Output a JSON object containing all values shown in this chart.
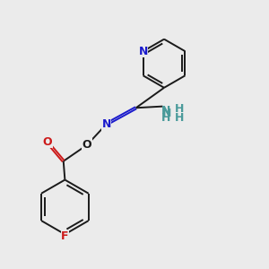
{
  "background_color": "#ebebeb",
  "bond_color": "#1a1a1a",
  "N_color": "#1a1acc",
  "O_color": "#cc1a1a",
  "F_color": "#cc1a1a",
  "NH_color": "#4a9a9a",
  "fig_size": [
    3.0,
    3.0
  ],
  "dpi": 100,
  "xlim": [
    0.8,
    8.2
  ],
  "ylim": [
    0.5,
    9.5
  ]
}
